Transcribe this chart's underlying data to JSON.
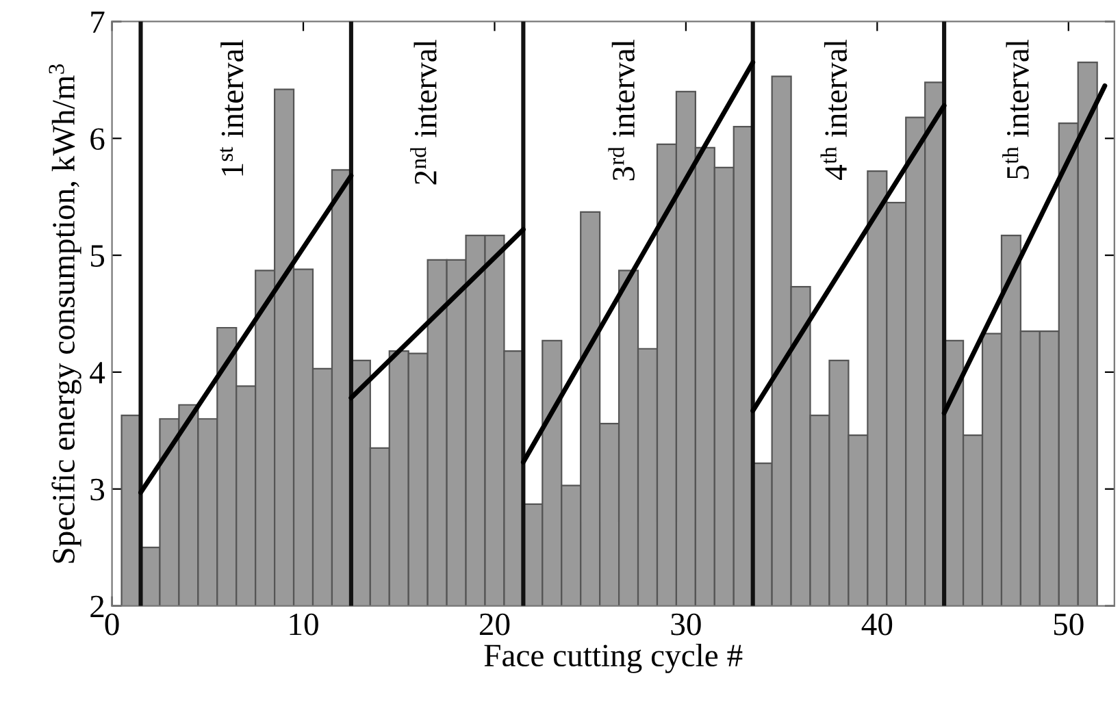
{
  "chart_data": {
    "type": "bar",
    "xlabel": "Face cutting cycle #",
    "ylabel": "Specific energy consumption, kWh/m$^{3}$",
    "xlim": [
      0,
      52.4
    ],
    "xticks": [
      0,
      10,
      20,
      30,
      40,
      50
    ],
    "ylim": [
      2,
      7
    ],
    "yticks": [
      2,
      3,
      4,
      5,
      6,
      7
    ],
    "grid": false,
    "legend": false,
    "series": [
      {
        "color": "#9a9a9a",
        "x": [
          1,
          2,
          3,
          4,
          5,
          6,
          7,
          8,
          9,
          10,
          11,
          12,
          13,
          14,
          15,
          16,
          17,
          18,
          19,
          20,
          21,
          22,
          23,
          24,
          25,
          26,
          27,
          28,
          29,
          30,
          31,
          32,
          33,
          34,
          35,
          36,
          37,
          38,
          39,
          40,
          41,
          42,
          43,
          44,
          45,
          46,
          47,
          48,
          49,
          50,
          51
        ],
        "values": [
          3.63,
          2.5,
          3.6,
          3.72,
          3.6,
          4.38,
          3.88,
          4.87,
          6.42,
          4.88,
          4.03,
          5.73,
          4.1,
          3.35,
          4.18,
          4.16,
          4.96,
          4.96,
          5.17,
          5.17,
          4.18,
          2.87,
          4.27,
          3.03,
          5.37,
          3.56,
          4.87,
          4.2,
          5.95,
          6.4,
          5.92,
          5.75,
          6.1,
          3.22,
          6.53,
          4.73,
          3.63,
          4.1,
          3.46,
          5.72,
          5.45,
          6.18,
          6.48,
          4.27,
          3.46,
          4.33,
          5.17,
          4.35,
          4.35,
          6.13,
          6.65
        ]
      },
      {
        "type": "line",
        "color": "#000000",
        "x": [
          1.5,
          12.5
        ],
        "values": [
          2.97,
          5.68
        ]
      },
      {
        "type": "line",
        "color": "#000000",
        "x": [
          12.5,
          21.5
        ],
        "values": [
          3.78,
          5.22
        ]
      },
      {
        "type": "line",
        "color": "#000000",
        "x": [
          21.5,
          33.5
        ],
        "values": [
          3.23,
          6.65
        ]
      },
      {
        "type": "line",
        "color": "#000000",
        "x": [
          33.5,
          43.5
        ],
        "values": [
          3.67,
          6.28
        ]
      },
      {
        "type": "line",
        "color": "#000000",
        "x": [
          43.5,
          51.9
        ],
        "values": [
          3.65,
          6.45
        ]
      }
    ],
    "ref_lines": [
      {
        "axis": "x",
        "value": 1.5,
        "color": "#111111"
      },
      {
        "axis": "x",
        "value": 12.5,
        "color": "#111111"
      },
      {
        "axis": "x",
        "value": 21.5,
        "color": "#111111"
      },
      {
        "axis": "x",
        "value": 33.5,
        "color": "#111111"
      },
      {
        "axis": "x",
        "value": 43.5,
        "color": "#111111"
      }
    ],
    "annotations": [
      "1$^{st}$ interval",
      "2$^{nd}$ interval",
      "3$^{rd}$ interval",
      "4$^{th}$ interval",
      "5$^{th}$ interval"
    ]
  }
}
